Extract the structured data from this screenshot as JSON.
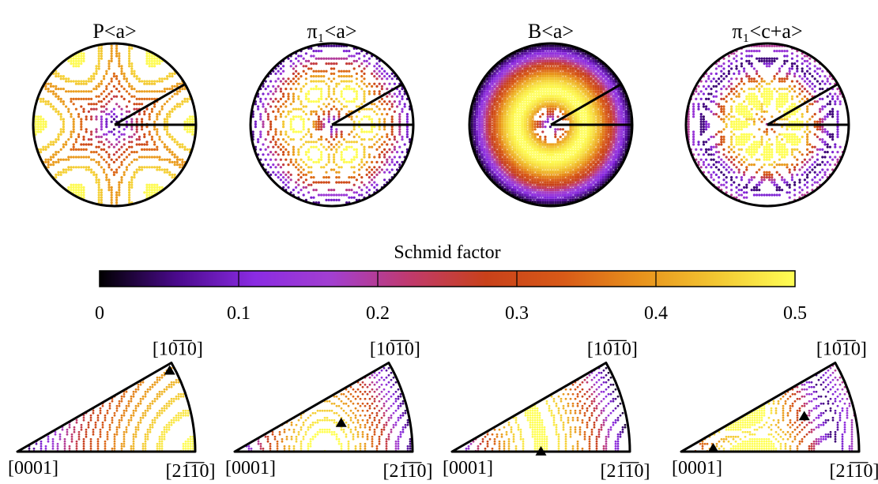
{
  "chart_data": [
    {
      "type": "heatmap",
      "layout": "pole-figures",
      "panels": [
        {
          "title": "P<a>",
          "mode": "P"
        },
        {
          "title": "π₁<a>",
          "mode": "PI_A"
        },
        {
          "title": "B<a>",
          "mode": "B"
        },
        {
          "title": "π₁<c+a>",
          "mode": "PI_CA"
        }
      ],
      "colorbar": {
        "label": "Schmid factor",
        "range": [
          0,
          0.5
        ],
        "ticks": [
          0,
          0.1,
          0.2,
          0.3,
          0.4,
          0.5
        ],
        "tick_labels": [
          "0",
          "0.1",
          "0.2",
          "0.3",
          "0.4",
          "0.5"
        ],
        "colormap": [
          "#000000",
          "#4a0a8c",
          "#8a2be2",
          "#a23fd0",
          "#c03a6e",
          "#c8411a",
          "#d85a18",
          "#e8921c",
          "#f3c832",
          "#ffff55"
        ]
      },
      "sector_angle_deg": 30,
      "contour_levels": [
        0.05,
        0.1,
        0.15,
        0.2,
        0.25,
        0.3,
        0.35,
        0.4,
        0.45,
        0.5
      ]
    },
    {
      "type": "heatmap",
      "layout": "inverse-pole-figures",
      "panels": [
        {
          "mode": "P",
          "max_marker_deg": 28
        },
        {
          "mode": "PI_A",
          "max_marker_deg": 15
        },
        {
          "mode": "B",
          "max_marker_deg": 0
        },
        {
          "mode": "PI_CA",
          "max_marker_deg": 16
        }
      ],
      "corner_labels": {
        "apex": "[10̅1̅0]",
        "left": "[0001]",
        "right": "[21̅1̅0]"
      }
    }
  ]
}
